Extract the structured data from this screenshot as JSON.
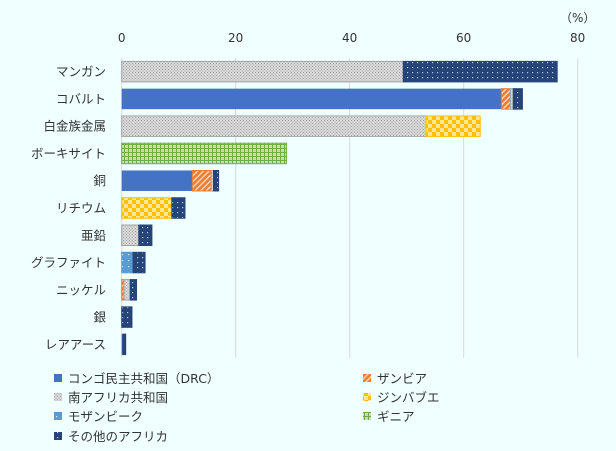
{
  "chart_data": {
    "type": "bar",
    "orientation": "horizontal",
    "stacked": true,
    "unit_label": "（%）",
    "xlim": [
      0,
      80
    ],
    "xticks": [
      0,
      20,
      40,
      60,
      80
    ],
    "grid": true,
    "legend_position": "bottom",
    "categories": [
      "マンガン",
      "コバルト",
      "白金族金属",
      "ボーキサイト",
      "銅",
      "リチウム",
      "亜鉛",
      "グラファイト",
      "ニッケル",
      "銀",
      "レアアース"
    ],
    "series": [
      {
        "name": "コンゴ民主共和国（DRC）",
        "color": "#4472C4",
        "pattern": "solid",
        "values": [
          0,
          66.6,
          0,
          0,
          12.4,
          0,
          0,
          0,
          0,
          0,
          0.2
        ]
      },
      {
        "name": "ザンビア",
        "color": "#ED7D31",
        "pattern": "hatch",
        "values": [
          0,
          1.6,
          0,
          0,
          3.3,
          0,
          0,
          0,
          0.4,
          0,
          0
        ]
      },
      {
        "name": "南アフリカ共和国",
        "color": "#A5A5A5",
        "pattern": "dots-gray",
        "values": [
          49.4,
          0.5,
          53.4,
          0,
          0.4,
          0,
          3.0,
          0,
          1.0,
          0,
          0
        ]
      },
      {
        "name": "ジンバブエ",
        "color": "#FFC000",
        "pattern": "checker",
        "values": [
          0,
          0,
          9.5,
          0,
          0,
          8.8,
          0,
          0,
          0.1,
          0,
          0
        ]
      },
      {
        "name": "モザンビーク",
        "color": "#5B9BD5",
        "pattern": "dots-light",
        "values": [
          0,
          0,
          0,
          0,
          0,
          0,
          0,
          2.0,
          0,
          0,
          0
        ]
      },
      {
        "name": "ギニア",
        "color": "#70AD47",
        "pattern": "grid",
        "values": [
          0,
          0,
          0,
          28.9,
          0,
          0,
          0,
          0,
          0,
          0,
          0
        ]
      },
      {
        "name": "その他のアフリカ",
        "color": "#264478",
        "pattern": "dots-dark",
        "values": [
          27.0,
          1.6,
          0,
          0,
          0.9,
          2.3,
          2.3,
          2.1,
          1.1,
          1.8,
          0.5
        ]
      }
    ]
  }
}
